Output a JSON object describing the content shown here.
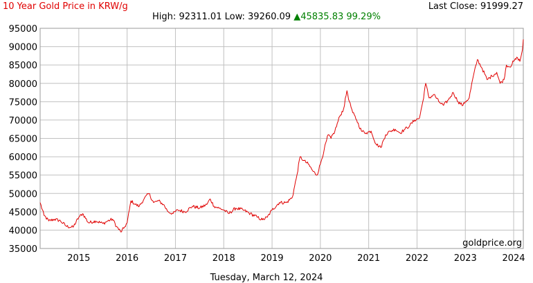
{
  "header": {
    "title": "10 Year Gold Price in KRW/g",
    "last_close_label": "Last Close:",
    "last_close_value": "91999.27",
    "high_label": "High:",
    "high_value": "92311.01",
    "low_label": "Low:",
    "low_value": "39260.09",
    "change_arrow": "▲",
    "change_value": "45835.83",
    "change_percent": "99.29%"
  },
  "footer": {
    "date": "Tuesday, March 12, 2024"
  },
  "watermark": "goldprice.org",
  "colors": {
    "line": "#e00000",
    "grid": "#c0c0c0",
    "change": "#008000"
  },
  "chart_data": {
    "type": "line",
    "title": "10 Year Gold Price in KRW/g",
    "xlim": [
      2014.2,
      2024.2
    ],
    "ylim": [
      35000,
      95000
    ],
    "yticks": [
      35000,
      40000,
      45000,
      50000,
      55000,
      60000,
      65000,
      70000,
      75000,
      80000,
      85000,
      90000,
      95000
    ],
    "xticks": [
      2015,
      2016,
      2017,
      2018,
      2019,
      2020,
      2021,
      2022,
      2023,
      2024
    ],
    "grid": true,
    "series": [
      {
        "color": "#e00000",
        "x": [
          2014.2,
          2014.28,
          2014.38,
          2014.5,
          2014.62,
          2014.75,
          2014.88,
          2015.0,
          2015.08,
          2015.2,
          2015.35,
          2015.5,
          2015.6,
          2015.7,
          2015.78,
          2015.87,
          2015.93,
          2016.0,
          2016.08,
          2016.17,
          2016.25,
          2016.35,
          2016.45,
          2016.55,
          2016.65,
          2016.75,
          2016.85,
          2016.95,
          2017.05,
          2017.2,
          2017.35,
          2017.5,
          2017.65,
          2017.72,
          2017.8,
          2017.9,
          2018.0,
          2018.1,
          2018.25,
          2018.4,
          2018.55,
          2018.7,
          2018.8,
          2018.9,
          2019.0,
          2019.15,
          2019.3,
          2019.42,
          2019.5,
          2019.58,
          2019.65,
          2019.75,
          2019.85,
          2019.93,
          2020.0,
          2020.08,
          2020.16,
          2020.22,
          2020.3,
          2020.4,
          2020.48,
          2020.55,
          2020.6,
          2020.67,
          2020.75,
          2020.85,
          2020.95,
          2021.05,
          2021.15,
          2021.25,
          2021.35,
          2021.45,
          2021.55,
          2021.65,
          2021.75,
          2021.85,
          2021.95,
          2022.05,
          2022.12,
          2022.18,
          2022.25,
          2022.35,
          2022.45,
          2022.55,
          2022.65,
          2022.75,
          2022.85,
          2022.95,
          2023.0,
          2023.08,
          2023.15,
          2023.25,
          2023.35,
          2023.45,
          2023.55,
          2023.65,
          2023.72,
          2023.8,
          2023.85,
          2023.92,
          2024.0,
          2024.08,
          2024.13,
          2024.18,
          2024.2
        ],
        "y": [
          47500,
          44000,
          42500,
          43000,
          42500,
          41000,
          40800,
          43500,
          44500,
          42000,
          42500,
          41800,
          42500,
          43000,
          41000,
          39500,
          40500,
          42000,
          48000,
          47000,
          46500,
          48500,
          50000,
          47500,
          48000,
          47000,
          45000,
          44500,
          45500,
          45000,
          46500,
          46000,
          47000,
          48500,
          46500,
          46000,
          45500,
          44500,
          46000,
          45500,
          44500,
          43500,
          42800,
          43500,
          45500,
          47500,
          47500,
          49000,
          54000,
          60000,
          59000,
          58000,
          56000,
          55000,
          58000,
          62000,
          66000,
          65000,
          67000,
          71000,
          73000,
          78000,
          75000,
          72000,
          70000,
          67000,
          66500,
          67000,
          63500,
          62500,
          66000,
          67000,
          67500,
          66500,
          67500,
          68500,
          70000,
          70500,
          75000,
          80000,
          76000,
          77000,
          75000,
          74000,
          75500,
          77500,
          75000,
          74000,
          75000,
          76000,
          81000,
          86500,
          84000,
          81000,
          82000,
          83000,
          80000,
          81000,
          85000,
          84500,
          86000,
          87000,
          86000,
          89000,
          91999.27
        ]
      }
    ]
  }
}
